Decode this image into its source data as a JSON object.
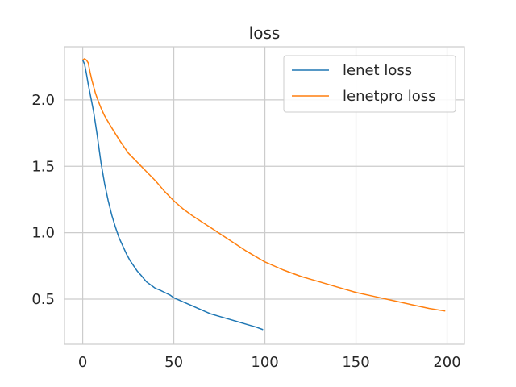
{
  "chart_data": {
    "type": "line",
    "title": "loss",
    "xlabel": "",
    "ylabel": "",
    "xlim": [
      -10,
      209.5
    ],
    "ylim": [
      0.16,
      2.4
    ],
    "xticks": [
      0,
      50,
      100,
      150,
      200
    ],
    "xtick_labels": [
      "0",
      "50",
      "100",
      "150",
      "200"
    ],
    "yticks": [
      0.5,
      1.0,
      1.5,
      2.0
    ],
    "ytick_labels": [
      "0.5",
      "1.0",
      "1.5",
      "2.0"
    ],
    "grid": true,
    "legend_position": "top-right",
    "series": [
      {
        "name": "lenet loss",
        "color": "#1f77b4",
        "x": [
          0,
          1,
          2,
          3,
          4,
          5,
          6,
          7,
          8,
          9,
          10,
          12,
          14,
          16,
          18,
          20,
          22,
          24,
          26,
          28,
          30,
          32,
          35,
          38,
          40,
          42,
          45,
          48,
          50,
          55,
          60,
          65,
          70,
          75,
          80,
          85,
          90,
          95,
          99
        ],
        "y": [
          2.3,
          2.27,
          2.2,
          2.12,
          2.05,
          1.98,
          1.91,
          1.82,
          1.73,
          1.63,
          1.53,
          1.37,
          1.24,
          1.13,
          1.04,
          0.96,
          0.9,
          0.84,
          0.79,
          0.75,
          0.71,
          0.68,
          0.63,
          0.6,
          0.58,
          0.57,
          0.55,
          0.53,
          0.51,
          0.48,
          0.45,
          0.42,
          0.39,
          0.37,
          0.35,
          0.33,
          0.31,
          0.29,
          0.27
        ]
      },
      {
        "name": "lenetpro loss",
        "color": "#ff7f0e",
        "x": [
          0,
          1,
          2,
          3,
          4,
          5,
          6,
          7,
          8,
          10,
          12,
          15,
          20,
          25,
          30,
          35,
          40,
          45,
          50,
          55,
          60,
          70,
          80,
          90,
          100,
          110,
          120,
          130,
          140,
          150,
          160,
          170,
          180,
          190,
          199
        ],
        "y": [
          2.3,
          2.31,
          2.3,
          2.28,
          2.21,
          2.15,
          2.1,
          2.05,
          2.01,
          1.94,
          1.88,
          1.81,
          1.7,
          1.6,
          1.53,
          1.46,
          1.39,
          1.31,
          1.24,
          1.18,
          1.13,
          1.04,
          0.95,
          0.86,
          0.78,
          0.72,
          0.67,
          0.63,
          0.59,
          0.55,
          0.52,
          0.49,
          0.46,
          0.43,
          0.41
        ]
      }
    ]
  }
}
